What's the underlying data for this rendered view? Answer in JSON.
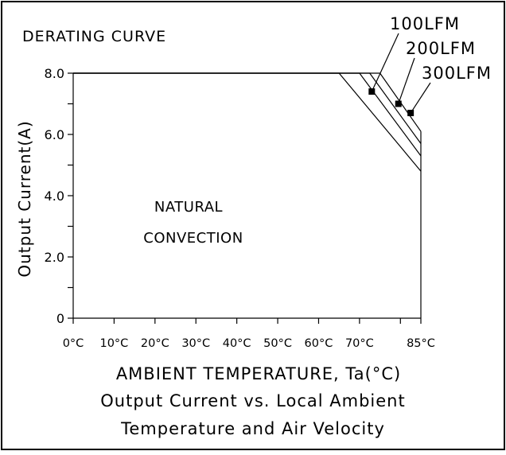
{
  "chart_data": {
    "type": "line",
    "title": "DERATING CURVE",
    "xlabel": "AMBIENT TEMPERATURE, Ta(°C)",
    "ylabel": "Output Current(A)",
    "caption": [
      "Output Current vs. Local Ambient",
      "Temperature and Air Velocity"
    ],
    "xlim": [
      0,
      85
    ],
    "ylim": [
      0,
      8
    ],
    "x_ticks": [
      0,
      10,
      20,
      30,
      40,
      50,
      60,
      70,
      85
    ],
    "x_tick_labels": [
      "0°C",
      "10°C",
      "20°C",
      "30°C",
      "40°C",
      "50°C",
      "60°C",
      "70°C",
      "85°C"
    ],
    "x_minor_ticks": [
      80
    ],
    "y_ticks": [
      0,
      2,
      4,
      6,
      8
    ],
    "y_tick_labels": [
      "0",
      "2.0",
      "4.0",
      "6.0",
      "8.0"
    ],
    "y_minor_ticks": [
      1,
      3,
      5,
      7
    ],
    "grid": false,
    "series": [
      {
        "name": "NATURAL CONVECTION",
        "x": [
          0,
          65,
          85
        ],
        "y": [
          8.0,
          8.0,
          4.8
        ]
      },
      {
        "name": "100LFM",
        "x": [
          0,
          70,
          85
        ],
        "y": [
          8.0,
          8.0,
          5.3
        ]
      },
      {
        "name": "200LFM",
        "x": [
          0,
          72.5,
          85
        ],
        "y": [
          8.0,
          8.0,
          5.7
        ]
      },
      {
        "name": "300LFM",
        "x": [
          0,
          75,
          85
        ],
        "y": [
          8.0,
          8.0,
          6.1
        ]
      }
    ],
    "markers": [
      {
        "series": "100LFM",
        "x": 73,
        "y": 7.4
      },
      {
        "series": "200LFM",
        "x": 79.5,
        "y": 7.0
      },
      {
        "series": "300LFM",
        "x": 82.5,
        "y": 6.7
      }
    ],
    "annotations": [
      "NATURAL",
      "CONVECTION"
    ],
    "legend_labels": [
      "100LFM",
      "200LFM",
      "300LFM"
    ]
  }
}
